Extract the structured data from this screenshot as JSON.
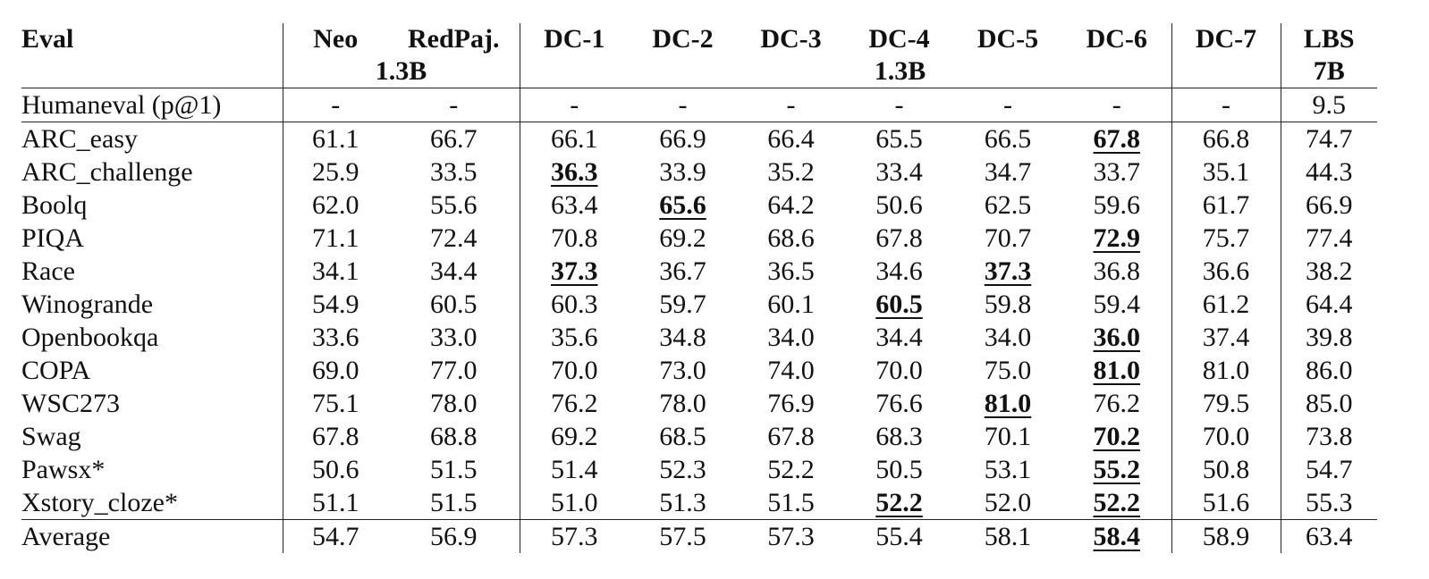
{
  "header": {
    "first": "Eval",
    "groups": [
      {
        "columns": [
          "Neo",
          "RedPaj."
        ],
        "size": "1.3B"
      },
      {
        "columns": [
          "DC-1",
          "DC-2",
          "DC-3",
          "DC-4",
          "DC-5",
          "DC-6"
        ],
        "size": "1.3B"
      },
      {
        "columns": [
          "DC-7"
        ]
      },
      {
        "columns": [
          "LBS"
        ],
        "size": "7B"
      }
    ]
  },
  "sections": [
    [
      {
        "eval": "Humaneval (p@1)",
        "values": [
          "-",
          "-",
          "-",
          "-",
          "-",
          "-",
          "-",
          "-",
          "-",
          "9.5"
        ]
      }
    ],
    [
      {
        "eval": "ARC_easy",
        "values": [
          "61.1",
          "66.7",
          "66.1",
          "66.9",
          "66.4",
          "65.5",
          "66.5",
          "67.8",
          "66.8",
          "74.7"
        ],
        "best": [
          "DC-6"
        ]
      },
      {
        "eval": "ARC_challenge",
        "values": [
          "25.9",
          "33.5",
          "36.3",
          "33.9",
          "35.2",
          "33.4",
          "34.7",
          "33.7",
          "35.1",
          "44.3"
        ],
        "best": [
          "DC-1"
        ]
      },
      {
        "eval": "Boolq",
        "values": [
          "62.0",
          "55.6",
          "63.4",
          "65.6",
          "64.2",
          "50.6",
          "62.5",
          "59.6",
          "61.7",
          "66.9"
        ],
        "best": [
          "DC-2"
        ]
      },
      {
        "eval": "PIQA",
        "values": [
          "71.1",
          "72.4",
          "70.8",
          "69.2",
          "68.6",
          "67.8",
          "70.7",
          "72.9",
          "75.7",
          "77.4"
        ],
        "best": [
          "DC-6"
        ]
      },
      {
        "eval": "Race",
        "values": [
          "34.1",
          "34.4",
          "37.3",
          "36.7",
          "36.5",
          "34.6",
          "37.3",
          "36.8",
          "36.6",
          "38.2"
        ],
        "best": [
          "DC-1",
          "DC-5"
        ]
      },
      {
        "eval": "Winogrande",
        "values": [
          "54.9",
          "60.5",
          "60.3",
          "59.7",
          "60.1",
          "60.5",
          "59.8",
          "59.4",
          "61.2",
          "64.4"
        ],
        "best": [
          "DC-4"
        ]
      },
      {
        "eval": "Openbookqa",
        "values": [
          "33.6",
          "33.0",
          "35.6",
          "34.8",
          "34.0",
          "34.4",
          "34.0",
          "36.0",
          "37.4",
          "39.8"
        ],
        "best": [
          "DC-6"
        ]
      },
      {
        "eval": "COPA",
        "values": [
          "69.0",
          "77.0",
          "70.0",
          "73.0",
          "74.0",
          "70.0",
          "75.0",
          "81.0",
          "81.0",
          "86.0"
        ],
        "best": [
          "DC-6"
        ]
      },
      {
        "eval": "WSC273",
        "values": [
          "75.1",
          "78.0",
          "76.2",
          "78.0",
          "76.9",
          "76.6",
          "81.0",
          "76.2",
          "79.5",
          "85.0"
        ],
        "best": [
          "DC-5"
        ]
      },
      {
        "eval": "Swag",
        "values": [
          "67.8",
          "68.8",
          "69.2",
          "68.5",
          "67.8",
          "68.3",
          "70.1",
          "70.2",
          "70.0",
          "73.8"
        ],
        "best": [
          "DC-6"
        ]
      },
      {
        "eval": "Pawsx*",
        "values": [
          "50.6",
          "51.5",
          "51.4",
          "52.3",
          "52.2",
          "50.5",
          "53.1",
          "55.2",
          "50.8",
          "54.7"
        ],
        "best": [
          "DC-6"
        ]
      },
      {
        "eval": "Xstory_cloze*",
        "values": [
          "51.1",
          "51.5",
          "51.0",
          "51.3",
          "51.5",
          "52.2",
          "52.0",
          "52.2",
          "51.6",
          "55.3"
        ],
        "best": [
          "DC-4",
          "DC-6"
        ]
      }
    ],
    [
      {
        "eval": "Average",
        "values": [
          "54.7",
          "56.9",
          "57.3",
          "57.5",
          "57.3",
          "55.4",
          "58.1",
          "58.4",
          "58.9",
          "63.4"
        ],
        "best": [
          "DC-6"
        ]
      }
    ]
  ]
}
